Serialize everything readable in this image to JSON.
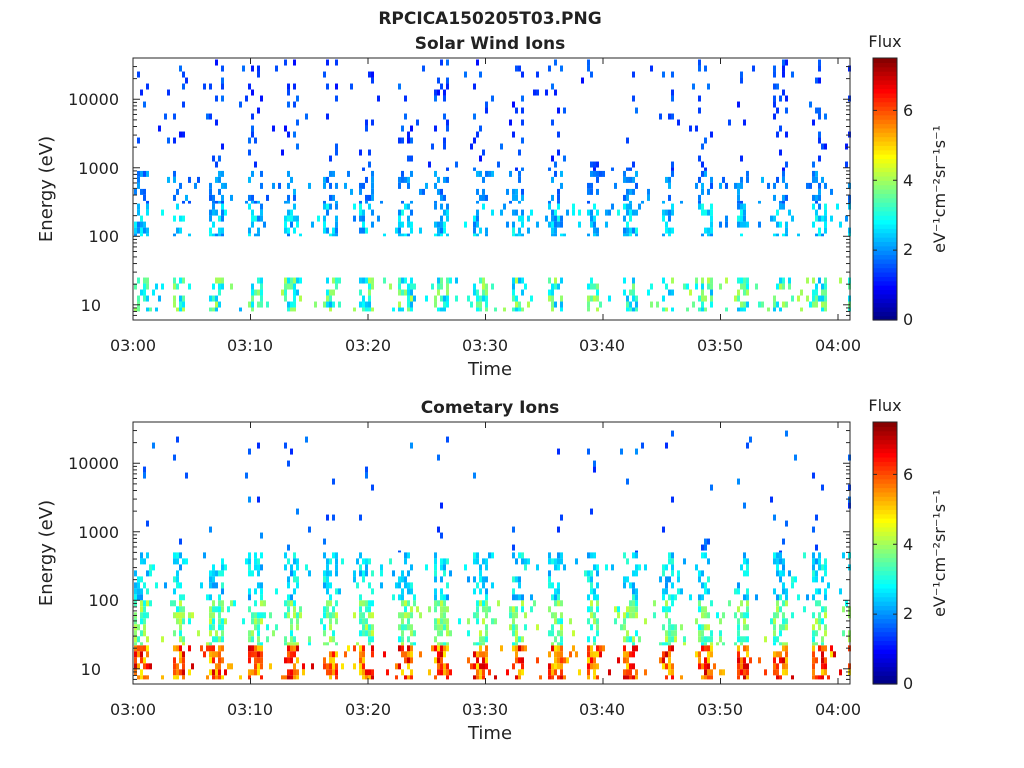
{
  "figure": {
    "title": "RPCICA150205T03.PNG"
  },
  "colorscale": [
    "#000080",
    "#0000ff",
    "#0080ff",
    "#00ffff",
    "#80ff80",
    "#ffff00",
    "#ff8000",
    "#ff0000",
    "#800000"
  ],
  "chart_data": [
    {
      "type": "heatmap",
      "title": "Solar Wind Ions",
      "xlabel": "Time",
      "ylabel": "Energy (eV)",
      "yscale": "log",
      "ylim": [
        6,
        40000
      ],
      "xlim": [
        "03:00",
        "04:00"
      ],
      "xticks": [
        "03:00",
        "03:10",
        "03:20",
        "03:30",
        "03:40",
        "03:50",
        "04:00"
      ],
      "yticks": [
        "10",
        "100",
        "1000",
        "10000"
      ],
      "colorbar": {
        "title": "Flux",
        "label": "eV⁻¹cm⁻²sr⁻¹s⁻¹",
        "range": [
          0,
          7.5
        ],
        "ticks": [
          "0",
          "2",
          "4",
          "6"
        ]
      },
      "sweep_period_min": 3.2,
      "bands": [
        {
          "energy_min": 8,
          "energy_max": 25,
          "flux_min": 2.2,
          "flux_max": 4.2,
          "density": 0.55
        },
        {
          "energy_min": 100,
          "energy_max": 300,
          "flux_min": 1.8,
          "flux_max": 3.0,
          "density": 0.5
        },
        {
          "energy_min": 300,
          "energy_max": 900,
          "flux_min": 1.5,
          "flux_max": 2.3,
          "density": 0.35
        },
        {
          "energy_min": 900,
          "energy_max": 38000,
          "flux_min": 1.0,
          "flux_max": 1.8,
          "density": 0.12
        }
      ]
    },
    {
      "type": "heatmap",
      "title": "Cometary Ions",
      "xlabel": "Time",
      "ylabel": "Energy (eV)",
      "yscale": "log",
      "ylim": [
        6,
        40000
      ],
      "xlim": [
        "03:00",
        "04:00"
      ],
      "xticks": [
        "03:00",
        "03:10",
        "03:20",
        "03:30",
        "03:40",
        "03:50",
        "04:00"
      ],
      "yticks": [
        "10",
        "100",
        "1000",
        "10000"
      ],
      "colorbar": {
        "title": "Flux",
        "label": "eV⁻¹cm⁻²sr⁻¹s⁻¹",
        "range": [
          0,
          7.5
        ],
        "ticks": [
          "0",
          "2",
          "4",
          "6"
        ]
      },
      "sweep_period_min": 3.2,
      "bands": [
        {
          "energy_min": 7,
          "energy_max": 22,
          "flux_min": 4.8,
          "flux_max": 7.0,
          "density": 0.7
        },
        {
          "energy_min": 22,
          "energy_max": 100,
          "flux_min": 2.8,
          "flux_max": 4.3,
          "density": 0.6
        },
        {
          "energy_min": 100,
          "energy_max": 500,
          "flux_min": 2.0,
          "flux_max": 3.2,
          "density": 0.45
        },
        {
          "energy_min": 500,
          "energy_max": 30000,
          "flux_min": 1.2,
          "flux_max": 2.0,
          "density": 0.03
        }
      ]
    }
  ]
}
